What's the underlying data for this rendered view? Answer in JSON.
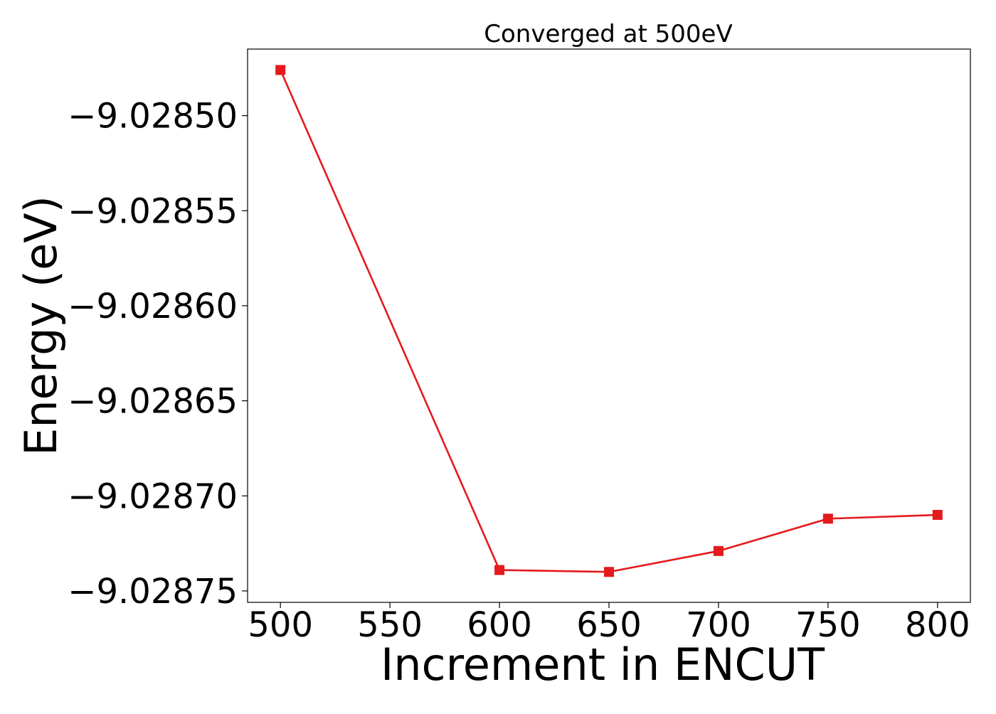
{
  "chart_data": {
    "type": "line",
    "title": "Converged at 500eV",
    "xlabel": "Increment in ENCUT",
    "ylabel": "Energy (eV)",
    "x": [
      500,
      600,
      650,
      700,
      750,
      800
    ],
    "series": [
      {
        "values": [
          -9.028476,
          -9.028739,
          -9.02874,
          -9.028729,
          -9.028712,
          -9.02871
        ],
        "color": "#e41a1c",
        "marker": "square"
      }
    ],
    "xticks": [
      500,
      550,
      600,
      650,
      700,
      750,
      800
    ],
    "xtick_labels": [
      "500",
      "550",
      "600",
      "650",
      "700",
      "750",
      "800"
    ],
    "yticks": [
      -9.0285,
      -9.02855,
      -9.0286,
      -9.02865,
      -9.0287,
      -9.02875
    ],
    "ytick_labels": [
      "−9.02850",
      "−9.02855",
      "−9.02860",
      "−9.02865",
      "−9.02870",
      "−9.02875"
    ],
    "xlim": [
      485,
      815
    ],
    "ylim": [
      -9.028756,
      -9.028465
    ],
    "grid": false,
    "legend": "none"
  }
}
